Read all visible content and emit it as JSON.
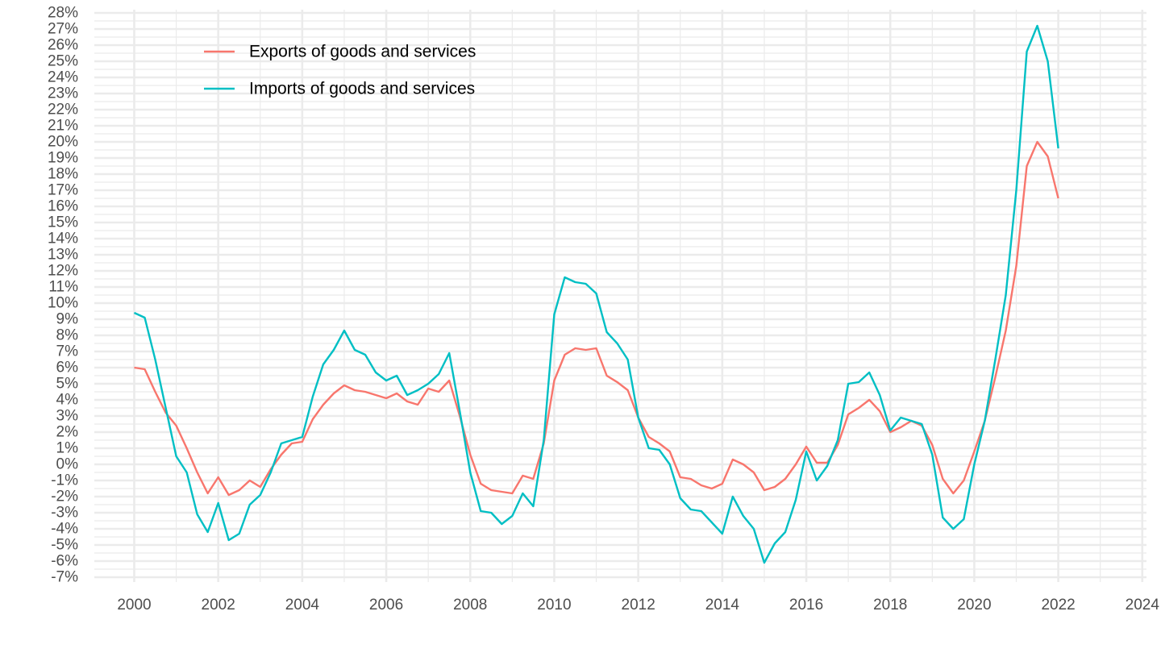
{
  "chart_data": {
    "type": "line",
    "title": "",
    "xlabel": "",
    "ylabel": "",
    "x_unit": "year",
    "y_unit": "percent",
    "xlim": [
      1999.05,
      2024.1
    ],
    "ylim": [
      -7.3,
      28.2
    ],
    "x_ticks": [
      2000,
      2002,
      2004,
      2006,
      2008,
      2010,
      2012,
      2014,
      2016,
      2018,
      2020,
      2022,
      2024
    ],
    "x_tick_labels": [
      "2000",
      "2002",
      "2004",
      "2006",
      "2008",
      "2010",
      "2012",
      "2014",
      "2016",
      "2018",
      "2020",
      "2022",
      "2024"
    ],
    "y_ticks": [
      -7,
      -6,
      -5,
      -4,
      -3,
      -2,
      -1,
      0,
      1,
      2,
      3,
      4,
      5,
      6,
      7,
      8,
      9,
      10,
      11,
      12,
      13,
      14,
      15,
      16,
      17,
      18,
      19,
      20,
      21,
      22,
      23,
      24,
      25,
      26,
      27,
      28
    ],
    "y_tick_labels": [
      "-7%",
      "-6%",
      "-5%",
      "-4%",
      "-3%",
      "-2%",
      "-1%",
      "0%",
      "1%",
      "2%",
      "3%",
      "4%",
      "5%",
      "6%",
      "7%",
      "8%",
      "9%",
      "10%",
      "11%",
      "12%",
      "13%",
      "14%",
      "15%",
      "16%",
      "17%",
      "18%",
      "19%",
      "20%",
      "21%",
      "22%",
      "23%",
      "24%",
      "25%",
      "26%",
      "27%",
      "28%"
    ],
    "grid": true,
    "legend_position": "top-left",
    "x": [
      2000.0,
      2000.25,
      2000.5,
      2000.75,
      2001.0,
      2001.25,
      2001.5,
      2001.75,
      2002.0,
      2002.25,
      2002.5,
      2002.75,
      2003.0,
      2003.25,
      2003.5,
      2003.75,
      2004.0,
      2004.25,
      2004.5,
      2004.75,
      2005.0,
      2005.25,
      2005.5,
      2005.75,
      2006.0,
      2006.25,
      2006.5,
      2006.75,
      2007.0,
      2007.25,
      2007.5,
      2007.75,
      2008.0,
      2008.25,
      2008.5,
      2008.75,
      2009.0,
      2009.25,
      2009.5,
      2009.75,
      2010.0,
      2010.25,
      2010.5,
      2010.75,
      2011.0,
      2011.25,
      2011.5,
      2011.75,
      2012.0,
      2012.25,
      2012.5,
      2012.75,
      2013.0,
      2013.25,
      2013.5,
      2013.75,
      2014.0,
      2014.25,
      2014.5,
      2014.75,
      2015.0,
      2015.25,
      2015.5,
      2015.75,
      2016.0,
      2016.25,
      2016.5,
      2016.75,
      2017.0,
      2017.25,
      2017.5,
      2017.75,
      2018.0,
      2018.25,
      2018.5,
      2018.75,
      2019.0,
      2019.25,
      2019.5,
      2019.75,
      2020.0,
      2020.25,
      2020.5,
      2020.75,
      2021.0,
      2021.25,
      2021.5,
      2021.75,
      2022.0
    ],
    "series": [
      {
        "name": "Exports of goods and services",
        "color": "#F8766D",
        "values": [
          6.0,
          5.9,
          4.5,
          3.2,
          2.4,
          1.0,
          -0.5,
          -1.8,
          -0.8,
          -1.9,
          -1.6,
          -1.0,
          -1.4,
          -0.3,
          0.6,
          1.3,
          1.4,
          2.8,
          3.7,
          4.4,
          4.9,
          4.6,
          4.5,
          4.3,
          4.1,
          4.4,
          3.9,
          3.7,
          4.7,
          4.5,
          5.2,
          3.0,
          0.6,
          -1.2,
          -1.6,
          -1.7,
          -1.8,
          -0.7,
          -0.9,
          1.3,
          5.2,
          6.8,
          7.2,
          7.1,
          7.2,
          5.5,
          5.1,
          4.6,
          2.9,
          1.7,
          1.3,
          0.8,
          -0.8,
          -0.9,
          -1.3,
          -1.5,
          -1.2,
          0.3,
          0.0,
          -0.5,
          -1.6,
          -1.4,
          -0.9,
          0.0,
          1.1,
          0.1,
          0.1,
          1.2,
          3.1,
          3.5,
          4.0,
          3.3,
          2.0,
          2.3,
          2.7,
          2.4,
          1.2,
          -0.9,
          -1.8,
          -1.0,
          0.8,
          2.7,
          5.4,
          8.3,
          12.3,
          18.5,
          20.0,
          19.1,
          16.5
        ]
      },
      {
        "name": "Imports of goods and services",
        "color": "#00BFC4",
        "values": [
          9.4,
          9.1,
          6.5,
          3.5,
          0.5,
          -0.5,
          -3.1,
          -4.2,
          -2.4,
          -4.7,
          -4.3,
          -2.5,
          -1.9,
          -0.5,
          1.3,
          1.5,
          1.7,
          4.2,
          6.2,
          7.1,
          8.3,
          7.1,
          6.8,
          5.7,
          5.2,
          5.5,
          4.3,
          4.6,
          5.0,
          5.6,
          6.9,
          3.3,
          -0.5,
          -2.9,
          -3.0,
          -3.7,
          -3.2,
          -1.8,
          -2.6,
          1.5,
          9.3,
          11.6,
          11.3,
          11.2,
          10.6,
          8.2,
          7.5,
          6.5,
          2.9,
          1.0,
          0.9,
          0.0,
          -2.1,
          -2.8,
          -2.9,
          -3.6,
          -4.3,
          -2.0,
          -3.2,
          -4.0,
          -6.1,
          -4.9,
          -4.2,
          -2.2,
          0.8,
          -1.0,
          -0.1,
          1.5,
          5.0,
          5.1,
          5.7,
          4.3,
          2.1,
          2.9,
          2.7,
          2.5,
          0.6,
          -3.3,
          -4.0,
          -3.4,
          0.0,
          2.7,
          6.5,
          10.5,
          17.0,
          25.6,
          27.2,
          25.0,
          19.6
        ]
      }
    ]
  }
}
